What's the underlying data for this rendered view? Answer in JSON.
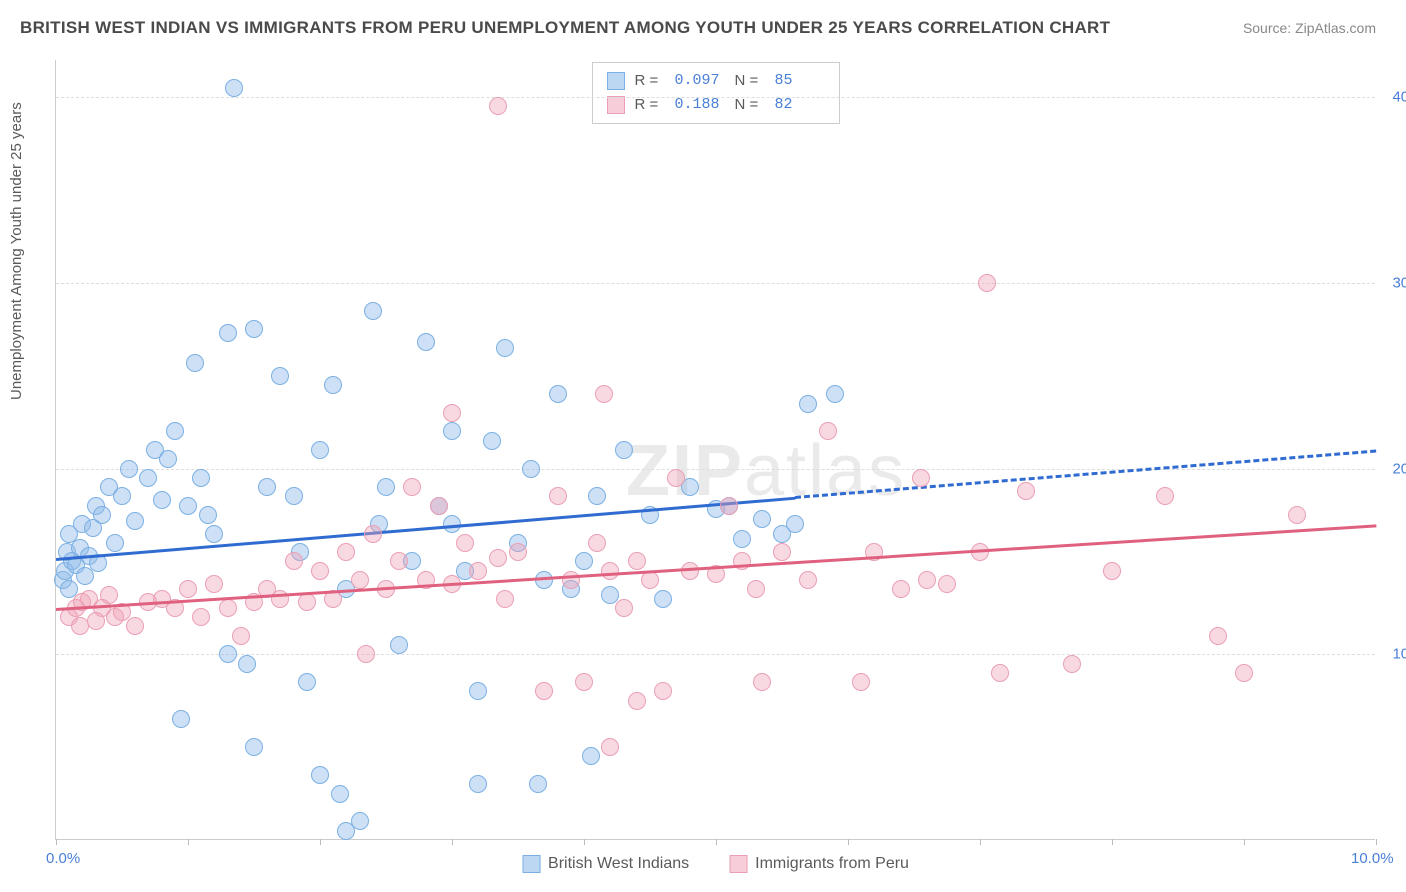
{
  "title": "BRITISH WEST INDIAN VS IMMIGRANTS FROM PERU UNEMPLOYMENT AMONG YOUTH UNDER 25 YEARS CORRELATION CHART",
  "source": "Source: ZipAtlas.com",
  "ylabel": "Unemployment Among Youth under 25 years",
  "watermark_a": "ZIP",
  "watermark_b": "atlas",
  "chart": {
    "type": "scatter",
    "background": "#ffffff",
    "grid_color": "#dddddd",
    "axis_color": "#cccccc",
    "xlim": [
      0,
      10
    ],
    "ylim": [
      0,
      42
    ],
    "xticks": [
      0,
      1,
      2,
      3,
      4,
      5,
      6,
      7,
      8,
      9,
      10
    ],
    "xtick_labels": {
      "0": "0.0%",
      "10": "10.0%"
    },
    "yticks": [
      10,
      20,
      30,
      40
    ],
    "ytick_labels": {
      "10": "10.0%",
      "20": "20.0%",
      "30": "30.0%",
      "40": "40.0%"
    },
    "point_radius": 9,
    "series": [
      {
        "name": "British West Indians",
        "color_fill": "rgba(144,186,232,0.45)",
        "color_stroke": "#7bb0e4",
        "legend_swatch_fill": "#bcd7f2",
        "legend_swatch_stroke": "#7bb0e4",
        "R": "0.097",
        "N": "85",
        "trend": {
          "color": "#2f6bd0",
          "x1": 0,
          "y1": 15.2,
          "x2": 5.6,
          "y2": 18.5,
          "style": "solid"
        },
        "trend_ext": {
          "color": "#2f6bd0",
          "x1": 5.6,
          "y1": 18.5,
          "x2": 10,
          "y2": 21.0,
          "style": "dashed"
        },
        "points": [
          [
            0.05,
            14.0
          ],
          [
            0.07,
            14.5
          ],
          [
            0.08,
            15.5
          ],
          [
            0.1,
            13.5
          ],
          [
            0.12,
            15.0
          ],
          [
            0.1,
            16.5
          ],
          [
            0.15,
            14.8
          ],
          [
            0.18,
            15.7
          ],
          [
            0.2,
            17.0
          ],
          [
            0.22,
            14.2
          ],
          [
            0.25,
            15.3
          ],
          [
            0.28,
            16.8
          ],
          [
            0.3,
            18.0
          ],
          [
            0.32,
            14.9
          ],
          [
            0.35,
            17.5
          ],
          [
            0.4,
            19.0
          ],
          [
            0.45,
            16.0
          ],
          [
            0.5,
            18.5
          ],
          [
            0.55,
            20.0
          ],
          [
            0.6,
            17.2
          ],
          [
            0.7,
            19.5
          ],
          [
            0.75,
            21.0
          ],
          [
            0.8,
            18.3
          ],
          [
            0.85,
            20.5
          ],
          [
            0.9,
            22.0
          ],
          [
            1.0,
            18.0
          ],
          [
            1.05,
            25.7
          ],
          [
            1.1,
            19.5
          ],
          [
            1.2,
            16.5
          ],
          [
            1.3,
            27.3
          ],
          [
            1.35,
            40.5
          ],
          [
            1.5,
            27.5
          ],
          [
            1.45,
            9.5
          ],
          [
            1.3,
            10.0
          ],
          [
            1.5,
            5.0
          ],
          [
            1.6,
            19.0
          ],
          [
            1.7,
            25.0
          ],
          [
            1.8,
            18.5
          ],
          [
            1.85,
            15.5
          ],
          [
            1.9,
            8.5
          ],
          [
            2.0,
            21.0
          ],
          [
            2.1,
            24.5
          ],
          [
            2.2,
            13.5
          ],
          [
            2.15,
            2.5
          ],
          [
            2.2,
            0.5
          ],
          [
            2.3,
            1.0
          ],
          [
            2.4,
            28.5
          ],
          [
            2.5,
            19.0
          ],
          [
            2.6,
            10.5
          ],
          [
            2.7,
            15.0
          ],
          [
            2.8,
            26.8
          ],
          [
            2.9,
            18.0
          ],
          [
            3.0,
            22.0
          ],
          [
            3.1,
            14.5
          ],
          [
            3.2,
            8.0
          ],
          [
            3.2,
            3.0
          ],
          [
            3.3,
            21.5
          ],
          [
            3.4,
            26.5
          ],
          [
            3.5,
            16.0
          ],
          [
            3.6,
            20.0
          ],
          [
            3.7,
            14.0
          ],
          [
            3.8,
            24.0
          ],
          [
            3.9,
            13.5
          ],
          [
            4.0,
            15.0
          ],
          [
            4.05,
            4.5
          ],
          [
            4.1,
            18.5
          ],
          [
            4.2,
            13.2
          ],
          [
            4.3,
            21.0
          ],
          [
            3.65,
            3.0
          ],
          [
            4.5,
            17.5
          ],
          [
            4.6,
            13.0
          ],
          [
            5.0,
            17.8
          ],
          [
            5.1,
            18.0
          ],
          [
            5.2,
            16.2
          ],
          [
            5.35,
            17.3
          ],
          [
            5.5,
            16.5
          ],
          [
            5.6,
            17.0
          ],
          [
            4.8,
            19.0
          ],
          [
            5.7,
            23.5
          ],
          [
            5.9,
            24.0
          ],
          [
            1.15,
            17.5
          ],
          [
            2.45,
            17.0
          ],
          [
            3.0,
            17.0
          ],
          [
            0.95,
            6.5
          ],
          [
            2.0,
            3.5
          ]
        ]
      },
      {
        "name": "Immigrants from Peru",
        "color_fill": "rgba(240,160,180,0.40)",
        "color_stroke": "#ea9fb5",
        "legend_swatch_fill": "#f6cdd8",
        "legend_swatch_stroke": "#ea9fb5",
        "R": "0.188",
        "N": "82",
        "trend": {
          "color": "#e0607f",
          "x1": 0,
          "y1": 12.5,
          "x2": 10,
          "y2": 17.0,
          "style": "solid"
        },
        "points": [
          [
            0.1,
            12.0
          ],
          [
            0.15,
            12.5
          ],
          [
            0.18,
            11.5
          ],
          [
            0.2,
            12.8
          ],
          [
            0.25,
            13.0
          ],
          [
            0.3,
            11.8
          ],
          [
            0.35,
            12.5
          ],
          [
            0.4,
            13.2
          ],
          [
            0.45,
            12.0
          ],
          [
            0.5,
            12.3
          ],
          [
            0.6,
            11.5
          ],
          [
            0.7,
            12.8
          ],
          [
            0.8,
            13.0
          ],
          [
            0.9,
            12.5
          ],
          [
            1.0,
            13.5
          ],
          [
            1.1,
            12.0
          ],
          [
            1.2,
            13.8
          ],
          [
            1.3,
            12.5
          ],
          [
            1.4,
            11.0
          ],
          [
            1.5,
            12.8
          ],
          [
            1.6,
            13.5
          ],
          [
            1.7,
            13.0
          ],
          [
            1.8,
            15.0
          ],
          [
            1.9,
            12.8
          ],
          [
            2.0,
            14.5
          ],
          [
            2.1,
            13.0
          ],
          [
            2.2,
            15.5
          ],
          [
            2.3,
            14.0
          ],
          [
            2.4,
            16.5
          ],
          [
            2.5,
            13.5
          ],
          [
            2.6,
            15.0
          ],
          [
            2.7,
            19.0
          ],
          [
            2.8,
            14.0
          ],
          [
            2.9,
            18.0
          ],
          [
            3.0,
            13.8
          ],
          [
            3.1,
            16.0
          ],
          [
            3.2,
            14.5
          ],
          [
            3.0,
            23.0
          ],
          [
            3.4,
            13.0
          ],
          [
            3.35,
            39.5
          ],
          [
            3.5,
            15.5
          ],
          [
            3.7,
            8.0
          ],
          [
            3.8,
            18.5
          ],
          [
            3.9,
            14.0
          ],
          [
            4.0,
            8.5
          ],
          [
            4.1,
            16.0
          ],
          [
            4.15,
            24.0
          ],
          [
            4.2,
            14.5
          ],
          [
            4.3,
            12.5
          ],
          [
            4.4,
            15.0
          ],
          [
            4.5,
            14.0
          ],
          [
            4.6,
            8.0
          ],
          [
            4.7,
            19.5
          ],
          [
            4.8,
            14.5
          ],
          [
            5.0,
            14.3
          ],
          [
            5.1,
            18.0
          ],
          [
            5.2,
            15.0
          ],
          [
            5.3,
            13.5
          ],
          [
            5.35,
            8.5
          ],
          [
            5.5,
            15.5
          ],
          [
            5.7,
            14.0
          ],
          [
            5.85,
            22.0
          ],
          [
            6.1,
            8.5
          ],
          [
            6.2,
            15.5
          ],
          [
            6.4,
            13.5
          ],
          [
            6.55,
            19.5
          ],
          [
            6.6,
            14.0
          ],
          [
            6.75,
            13.8
          ],
          [
            7.0,
            15.5
          ],
          [
            7.05,
            30.0
          ],
          [
            7.15,
            9.0
          ],
          [
            7.35,
            18.8
          ],
          [
            7.7,
            9.5
          ],
          [
            8.0,
            14.5
          ],
          [
            4.2,
            5.0
          ],
          [
            8.4,
            18.5
          ],
          [
            8.8,
            11.0
          ],
          [
            9.0,
            9.0
          ],
          [
            9.4,
            17.5
          ],
          [
            2.35,
            10.0
          ],
          [
            3.35,
            15.2
          ],
          [
            4.4,
            7.5
          ]
        ]
      }
    ]
  },
  "legend_bottom": [
    {
      "label": "British West Indians"
    },
    {
      "label": "Immigrants from Peru"
    }
  ]
}
